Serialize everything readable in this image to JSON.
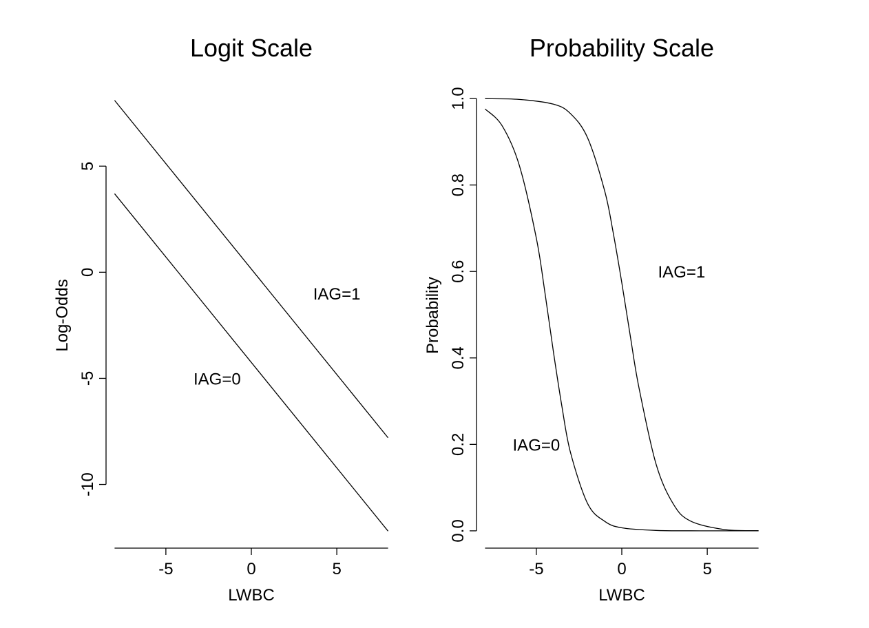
{
  "chart_data": [
    {
      "type": "line",
      "title": "Logit Scale",
      "xlabel": "LWBC",
      "ylabel": "Log-Odds",
      "xlim": [
        -8.5,
        8.5
      ],
      "ylim": [
        -13,
        9
      ],
      "xticks": [
        -5,
        0,
        5
      ],
      "yticks": [
        5,
        0,
        -5,
        -10
      ],
      "xtick_labels": [
        "-5",
        "0",
        "5"
      ],
      "ytick_labels": [
        "5",
        "0",
        "-5",
        "-10"
      ],
      "grid": false,
      "series": [
        {
          "x": [
            -8,
            8
          ],
          "y": [
            3.7,
            -12.2
          ]
        },
        {
          "x": [
            -8,
            8
          ],
          "y": [
            8.1,
            -7.8
          ]
        }
      ],
      "annotations": [
        {
          "text": "IAG=1",
          "x": 5,
          "y": -1
        },
        {
          "text": "IAG=0",
          "x": -2,
          "y": -5
        }
      ]
    },
    {
      "type": "line",
      "title": "Probability Scale",
      "xlabel": "LWBC",
      "ylabel": "Probability",
      "xlim": [
        -8.5,
        8.5
      ],
      "ylim": [
        -0.04,
        1.04
      ],
      "xticks": [
        -5,
        0,
        5
      ],
      "yticks": [
        0.0,
        0.2,
        0.4,
        0.6,
        0.8,
        1.0
      ],
      "xtick_labels": [
        "-5",
        "0",
        "5"
      ],
      "ytick_labels": [
        "0.0",
        "0.2",
        "0.4",
        "0.6",
        "0.8",
        "1.0"
      ],
      "grid": false,
      "series": [
        {
          "x": [
            -8,
            -7,
            -6,
            -5,
            -4.5,
            -4,
            -3.5,
            -3,
            -2,
            -1,
            0,
            2,
            4,
            6,
            8
          ],
          "y": [
            0.976,
            0.937,
            0.846,
            0.677,
            0.552,
            0.414,
            0.287,
            0.181,
            0.063,
            0.022,
            0.007,
            0.0009,
            0.0001,
            0.0,
            0.0
          ]
        },
        {
          "x": [
            -8,
            -6,
            -4,
            -3,
            -2,
            -1,
            -0.5,
            0,
            0.5,
            1,
            2,
            3,
            4,
            6,
            8
          ],
          "y": [
            0.9997,
            0.998,
            0.987,
            0.965,
            0.909,
            0.786,
            0.689,
            0.574,
            0.45,
            0.332,
            0.155,
            0.063,
            0.023,
            0.003,
            0.0004
          ]
        }
      ],
      "annotations": [
        {
          "text": "IAG=1",
          "x": 3.5,
          "y": 0.6
        },
        {
          "text": "IAG=0",
          "x": -5,
          "y": 0.2
        }
      ]
    }
  ]
}
